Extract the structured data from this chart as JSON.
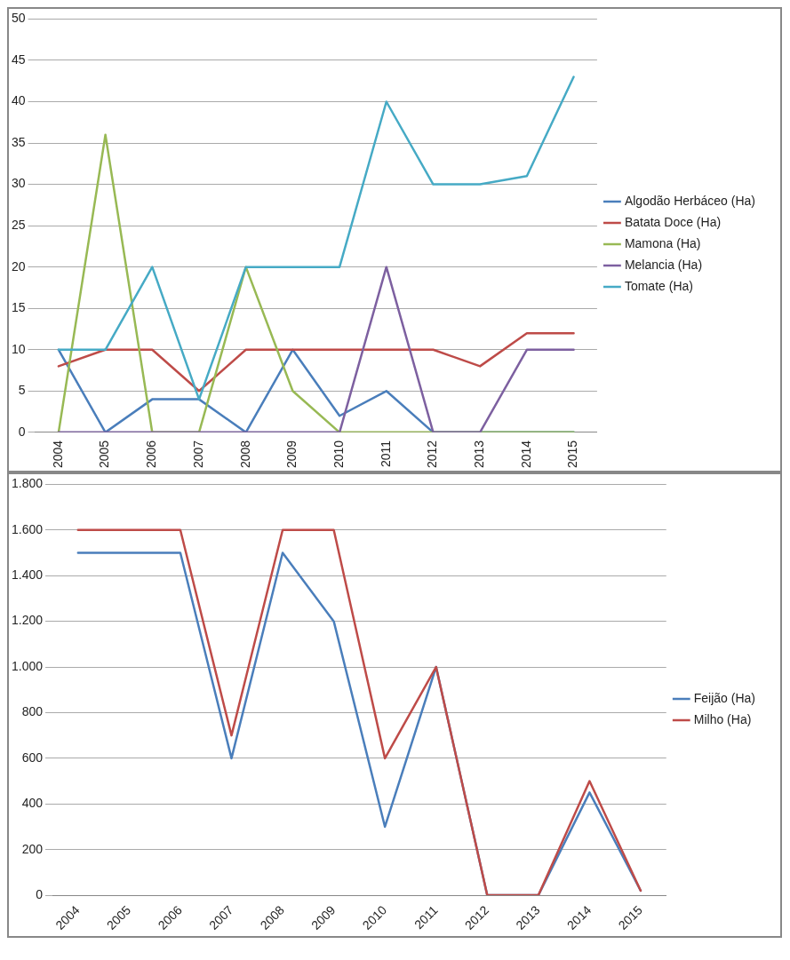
{
  "chart_data": [
    {
      "type": "line",
      "categories": [
        "2004",
        "2005",
        "2006",
        "2007",
        "2008",
        "2009",
        "2010",
        "2011",
        "2012",
        "2013",
        "2014",
        "2015"
      ],
      "series": [
        {
          "name": "Algodão Herbáceo (Ha)",
          "color": "#4a7ebb",
          "values": [
            10,
            0,
            4,
            4,
            0,
            10,
            2,
            5,
            0,
            0,
            0,
            0
          ]
        },
        {
          "name": "Batata Doce (Ha)",
          "color": "#be4b48",
          "values": [
            8,
            10,
            10,
            5,
            10,
            10,
            10,
            10,
            10,
            8,
            12,
            12
          ]
        },
        {
          "name": "Mamona (Ha)",
          "color": "#98b954",
          "values": [
            0,
            36,
            0,
            0,
            20,
            5,
            0,
            0,
            0,
            0,
            0,
            0
          ]
        },
        {
          "name": "Melancia (Ha)",
          "color": "#7d60a0",
          "values": [
            0,
            0,
            0,
            0,
            0,
            0,
            0,
            20,
            0,
            0,
            10,
            10
          ]
        },
        {
          "name": "Tomate (Ha)",
          "color": "#46aac5",
          "values": [
            10,
            10,
            20,
            4,
            20,
            20,
            20,
            40,
            30,
            30,
            31,
            43
          ]
        }
      ],
      "ylim": [
        0,
        50
      ],
      "yticks": [
        0,
        5,
        10,
        15,
        20,
        25,
        30,
        35,
        40,
        45,
        50
      ],
      "grid": "y",
      "legend": "right",
      "marker": "none",
      "line_style": "solid"
    },
    {
      "type": "line",
      "categories": [
        "2004",
        "2005",
        "2006",
        "2007",
        "2008",
        "2009",
        "2010",
        "2011",
        "2012",
        "2013",
        "2014",
        "2015"
      ],
      "series": [
        {
          "name": "Feijão (Ha)",
          "color": "#4a7ebb",
          "values": [
            1500,
            1500,
            1500,
            600,
            1500,
            1200,
            300,
            1000,
            0,
            0,
            450,
            20
          ]
        },
        {
          "name": "Milho (Ha)",
          "color": "#be4b48",
          "values": [
            1600,
            1600,
            1600,
            700,
            1600,
            1600,
            600,
            1000,
            0,
            0,
            500,
            20
          ]
        }
      ],
      "ylim": [
        0,
        1800
      ],
      "yticks": [
        0,
        {
          "value": 200,
          "label": "200"
        },
        {
          "value": 400,
          "label": "400"
        },
        {
          "value": 600,
          "label": "600"
        },
        {
          "value": 800,
          "label": "800"
        },
        {
          "value": 1000,
          "label": "1.000"
        },
        {
          "value": 1200,
          "label": "1.200"
        },
        {
          "value": 1400,
          "label": "1.400"
        },
        {
          "value": 1600,
          "label": "1.600"
        },
        {
          "value": 1800,
          "label": "1.800"
        }
      ],
      "grid": "y",
      "legend": "right",
      "marker": "none",
      "line_style": "solid"
    }
  ]
}
